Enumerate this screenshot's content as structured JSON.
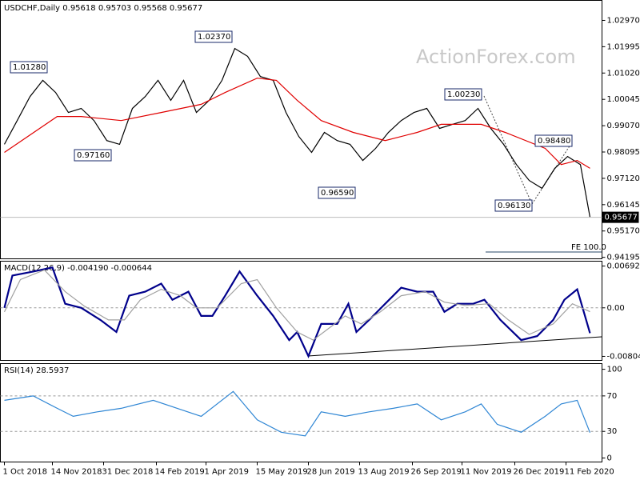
{
  "chart_data": [
    {
      "type": "line",
      "title": "USDCHF,Daily  0.95618 0.95703 0.95568 0.95677",
      "watermark": "ActionForex.com",
      "xlim": [
        -2.5,
        373.5
      ],
      "ylim": [
        0.9414,
        1.0371
      ],
      "yticks": [
        {
          "value": 1.0297,
          "label": "1.02970"
        },
        {
          "value": 1.01995,
          "label": "1.01995"
        },
        {
          "value": 1.0102,
          "label": "1.01020"
        },
        {
          "value": 1.00045,
          "label": "1.00045"
        },
        {
          "value": 0.9907,
          "label": "0.99070"
        },
        {
          "value": 0.98095,
          "label": "0.98095"
        },
        {
          "value": 0.9712,
          "label": "0.97120"
        },
        {
          "value": 0.96145,
          "label": "0.96145"
        },
        {
          "value": 0.9517,
          "label": "0.95170"
        },
        {
          "value": 0.94195,
          "label": "0.94195"
        }
      ],
      "series": [
        {
          "name": "USDCHF",
          "color": "#000000",
          "x": [
            0,
            8,
            16,
            24,
            32,
            40,
            48,
            56,
            64,
            72,
            80,
            88,
            96,
            104,
            112,
            120,
            128,
            136,
            144,
            152,
            160,
            168,
            176,
            184,
            192,
            200,
            208,
            216,
            224,
            232,
            240,
            248,
            256,
            264,
            272,
            280,
            288,
            296,
            304,
            312,
            320,
            328,
            336,
            344,
            352,
            360,
            366
          ],
          "values": [
            0.9838,
            0.9926,
            1.0015,
            1.0075,
            1.003,
            0.9956,
            0.9971,
            0.9926,
            0.9852,
            0.9838,
            0.9971,
            1.0015,
            1.0075,
            1.0001,
            1.0075,
            0.9956,
            1.0001,
            1.0075,
            1.0193,
            1.0164,
            1.0089,
            1.0075,
            0.9956,
            0.9867,
            0.9808,
            0.9882,
            0.9852,
            0.9838,
            0.9778,
            0.9823,
            0.9882,
            0.9926,
            0.9956,
            0.9971,
            0.9897,
            0.9912,
            0.9926,
            0.9971,
            0.9897,
            0.9838,
            0.9763,
            0.9704,
            0.9675,
            0.9749,
            0.9793,
            0.9763,
            0.95677
          ]
        },
        {
          "name": "MA",
          "color": "#e00000",
          "x": [
            0,
            33,
            48,
            73,
            98,
            123,
            138,
            158,
            170,
            183,
            198,
            218,
            238,
            258,
            273,
            298,
            313,
            338,
            348,
            358,
            366
          ],
          "values": [
            0.9808,
            0.9941,
            0.9941,
            0.9926,
            0.9956,
            0.9986,
            1.003,
            1.0083,
            1.0075,
            1.0001,
            0.9926,
            0.9882,
            0.9852,
            0.9882,
            0.9912,
            0.9912,
            0.9882,
            0.9823,
            0.9763,
            0.9778,
            0.9749
          ]
        }
      ],
      "annotations": [
        "1.01280",
        "1.02370",
        "0.97160",
        "0.96590",
        "1.00230",
        "0.98480",
        "0.96130",
        "FE 100.0"
      ],
      "last_label": "0.95677"
    },
    {
      "type": "line",
      "title": "MACD(12,26,9) -0.004190 -0.000644",
      "xlim": [
        -2.5,
        373.5
      ],
      "ylim": [
        -0.008718,
        0.007729
      ],
      "yticks": [
        0.006927,
        {
          "value": 0,
          "label": "0.00"
        },
        -0.008049
      ],
      "levels": [
        0
      ],
      "series": [
        {
          "name": "MACD",
          "color": "#00008b",
          "x": [
            0,
            5,
            18,
            30,
            38,
            48,
            60,
            70,
            78,
            88,
            98,
            105,
            115,
            123,
            130,
            138,
            147,
            158,
            168,
            178,
            183,
            190,
            198,
            208,
            215,
            220,
            228,
            238,
            248,
            258,
            268,
            275,
            283,
            293,
            300,
            310,
            323,
            333,
            343,
            350,
            358,
            366
          ],
          "values": [
            0,
            0.00535,
            0.00602,
            0.00669,
            0.00067,
            0,
            -0.00201,
            -0.00401,
            0.00201,
            0.00267,
            0.00401,
            0.00134,
            0.00267,
            -0.00134,
            -0.00134,
            0.00201,
            0.00602,
            0.00201,
            -0.00134,
            -0.00535,
            -0.00401,
            -0.00802,
            -0.00267,
            -0.00267,
            0.00067,
            -0.00401,
            -0.00201,
            0.00067,
            0.00334,
            0.00267,
            0.00267,
            -0.00067,
            0.00067,
            0.00067,
            0.00134,
            -0.00201,
            -0.00535,
            -0.00468,
            -0.00201,
            0.00134,
            0.00308,
            -0.00419
          ]
        },
        {
          "name": "Signal",
          "color": "#a0a0a0",
          "x": [
            0,
            10,
            25,
            38,
            50,
            65,
            75,
            85,
            98,
            110,
            120,
            133,
            148,
            158,
            170,
            183,
            193,
            203,
            213,
            223,
            235,
            248,
            263,
            275,
            288,
            303,
            315,
            328,
            343,
            355,
            366
          ],
          "values": [
            -0.00067,
            0.00468,
            0.00628,
            0.00267,
            0.00027,
            -0.00201,
            -0.00201,
            0.00134,
            0.00308,
            0.00201,
            0,
            0,
            0.00401,
            0.00468,
            0,
            -0.00401,
            -0.00535,
            -0.00334,
            -0.00134,
            -0.00267,
            -0.00067,
            0.00201,
            0.00267,
            0.00094,
            0.0004,
            0.00067,
            -0.00201,
            -0.00441,
            -0.00267,
            0.00067,
            -0.000644
          ]
        }
      ]
    },
    {
      "type": "line",
      "title": "RSI(14) 28.5937",
      "xlim": [
        -2.5,
        373.5
      ],
      "ylim": [
        -4.5,
        106.4
      ],
      "yticks": [
        100,
        70,
        30,
        0
      ],
      "levels": [
        70,
        30
      ],
      "xticks": [
        {
          "value": 0,
          "label": "1 Oct 2018"
        },
        {
          "value": 30,
          "label": "14 Nov 2018"
        },
        {
          "value": 62,
          "label": "31 Dec 2018"
        },
        {
          "value": 95,
          "label": "14 Feb 2019"
        },
        {
          "value": 126,
          "label": "1 Apr 2019"
        },
        {
          "value": 158,
          "label": "15 May 2019"
        },
        {
          "value": 190,
          "label": "28 Jun 2019"
        },
        {
          "value": 222,
          "label": "13 Aug 2019"
        },
        {
          "value": 255,
          "label": "26 Sep 2019"
        },
        {
          "value": 286,
          "label": "11 Nov 2019"
        },
        {
          "value": 319,
          "label": "26 Dec 2019"
        },
        {
          "value": 351,
          "label": "11 Feb 2020"
        }
      ],
      "series": [
        {
          "name": "RSI",
          "color": "#2f86d4",
          "x": [
            0,
            18,
            33,
            43,
            58,
            73,
            93,
            108,
            123,
            143,
            158,
            173,
            188,
            198,
            213,
            228,
            243,
            258,
            273,
            288,
            298,
            308,
            323,
            338,
            348,
            358,
            366
          ],
          "values": [
            65,
            70,
            56,
            47,
            52,
            56,
            65,
            56,
            47,
            75,
            43,
            29,
            25,
            52,
            47,
            52,
            56,
            61,
            43,
            52,
            61,
            38,
            29,
            47,
            61,
            65,
            28.5937
          ]
        }
      ]
    }
  ]
}
